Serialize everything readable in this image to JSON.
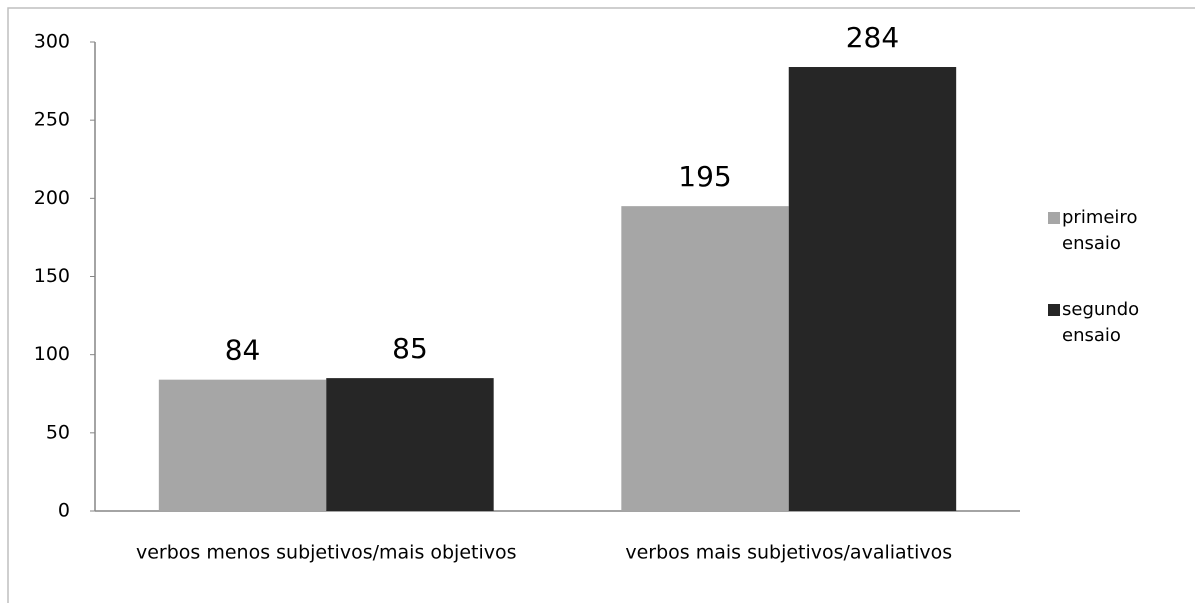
{
  "chart_data": {
    "type": "bar",
    "categories": [
      "verbos menos subjetivos/mais objetivos",
      "verbos mais subjetivos/avaliativos"
    ],
    "series": [
      {
        "name": "primeiro ensaio",
        "color": "#a6a6a6",
        "values": [
          84,
          195
        ]
      },
      {
        "name": "segundo ensaio",
        "color": "#262626",
        "values": [
          85,
          284
        ]
      }
    ],
    "ylim": [
      0,
      300
    ],
    "yticks": [
      0,
      50,
      100,
      150,
      200,
      250,
      300
    ],
    "legend": "right"
  }
}
